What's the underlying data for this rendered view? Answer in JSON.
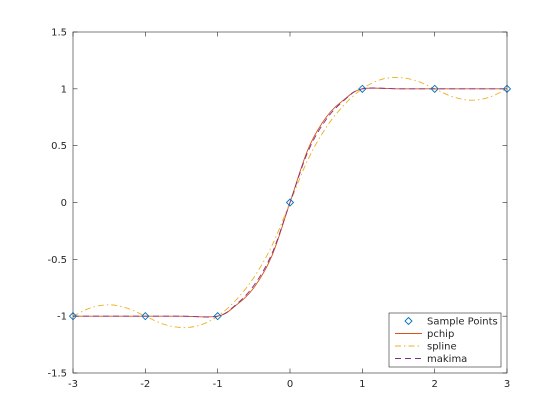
{
  "chart_data": {
    "type": "line",
    "title": "",
    "xlabel": "",
    "ylabel": "",
    "xlim": [
      -3,
      3
    ],
    "ylim": [
      -1.5,
      1.5
    ],
    "x_ticks": [
      -3,
      -2,
      -1,
      0,
      1,
      2,
      3
    ],
    "x_tick_labels": [
      "-3",
      "-2",
      "-1",
      "0",
      "1",
      "2",
      "3"
    ],
    "y_ticks": [
      -1.5,
      -1,
      -0.5,
      0,
      0.5,
      1,
      1.5
    ],
    "y_tick_labels": [
      "-1.5",
      "-1",
      "-0.5",
      "0",
      "0.5",
      "1",
      "1.5"
    ],
    "grid": false,
    "legend_position": "bottom-right",
    "sample_points": {
      "name": "Sample Points",
      "marker": "diamond",
      "color": "#0072bd",
      "x": [
        -3,
        -2,
        -1,
        0,
        1,
        2,
        3
      ],
      "y": [
        -1,
        -1,
        -1,
        0,
        1,
        1,
        1
      ]
    },
    "series": [
      {
        "name": "pchip",
        "style": "solid",
        "color": "#d95319",
        "x": [
          -3,
          -2.5,
          -2,
          -1.5,
          -1,
          -0.75,
          -0.5,
          -0.25,
          0,
          0.25,
          0.5,
          0.75,
          1,
          1.5,
          2,
          2.5,
          3
        ],
        "y": [
          -1,
          -1,
          -1,
          -1,
          -1,
          -0.906,
          -0.75,
          -0.469,
          0,
          0.469,
          0.75,
          0.906,
          1,
          1,
          1,
          1,
          1
        ]
      },
      {
        "name": "spline",
        "style": "dash-dot",
        "color": "#edb120",
        "x": [
          -3,
          -2.75,
          -2.5,
          -2.25,
          -2,
          -1.75,
          -1.5,
          -1.25,
          -1,
          -0.75,
          -0.5,
          -0.25,
          0,
          0.25,
          0.5,
          0.75,
          1,
          1.25,
          1.5,
          1.75,
          2,
          2.25,
          2.5,
          2.75,
          3
        ],
        "y": [
          -1,
          -0.925,
          -0.9,
          -0.93,
          -1,
          -1.07,
          -1.1,
          -1.08,
          -1,
          -0.86,
          -0.66,
          -0.38,
          0,
          0.38,
          0.66,
          0.86,
          1,
          1.08,
          1.1,
          1.07,
          1,
          0.93,
          0.9,
          0.925,
          1
        ]
      },
      {
        "name": "makima",
        "style": "dashed",
        "color": "#7e2f8e",
        "x": [
          -3,
          -2.5,
          -2,
          -1.5,
          -1,
          -0.75,
          -0.5,
          -0.25,
          0,
          0.25,
          0.5,
          0.75,
          1,
          1.5,
          2,
          2.5,
          3
        ],
        "y": [
          -1,
          -1,
          -1,
          -1,
          -1,
          -0.9,
          -0.73,
          -0.45,
          0,
          0.45,
          0.73,
          0.9,
          1,
          1,
          1,
          1,
          1
        ]
      }
    ]
  }
}
